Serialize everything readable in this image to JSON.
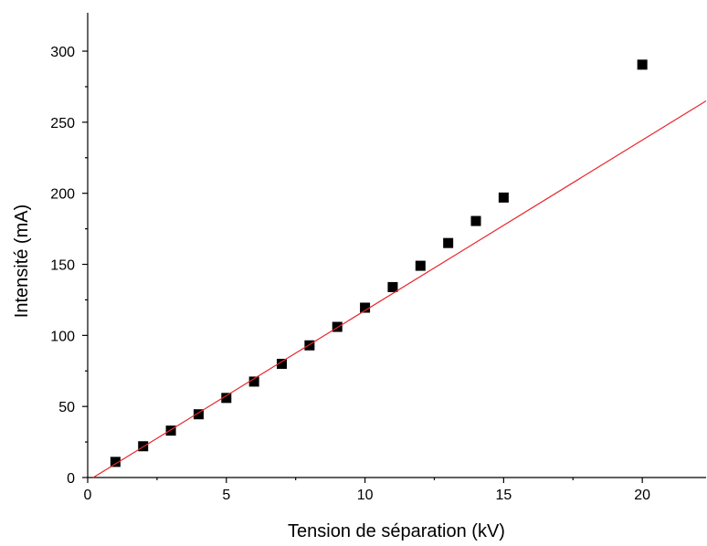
{
  "chart_data": {
    "type": "scatter",
    "xlabel": "Tension de séparation (kV)",
    "ylabel": "Intensité (mA)",
    "xlim": [
      0,
      22.3
    ],
    "ylim": [
      0,
      327
    ],
    "x_ticks": [
      0,
      5,
      10,
      15,
      20
    ],
    "y_ticks": [
      0,
      50,
      100,
      150,
      200,
      250,
      300
    ],
    "x_minor_ticks": [
      2.5,
      7.5,
      12.5,
      17.5
    ],
    "y_minor_ticks": [
      25,
      75,
      125,
      175,
      225,
      275
    ],
    "grid": false,
    "series": [
      {
        "kind": "points",
        "marker": "square",
        "color": "#000000",
        "x": [
          1,
          2,
          3,
          4,
          5,
          6,
          7,
          8,
          9,
          10,
          11,
          12,
          13,
          14,
          15,
          20
        ],
        "y": [
          11,
          22,
          33,
          44.5,
          56,
          67.5,
          80,
          93,
          106,
          119.5,
          134,
          149,
          165,
          180.5,
          197,
          290.5
        ]
      },
      {
        "kind": "fit-line",
        "color": "#e8262b",
        "x": [
          0.2,
          22.3
        ],
        "y": [
          0,
          265
        ]
      }
    ]
  }
}
